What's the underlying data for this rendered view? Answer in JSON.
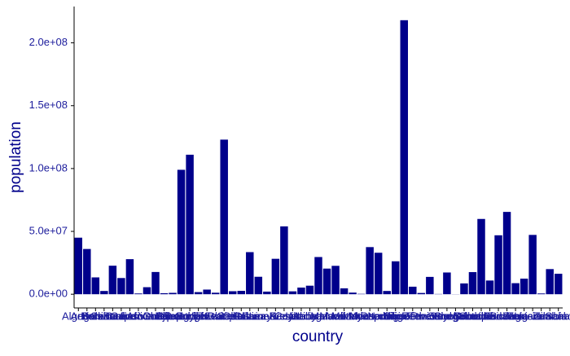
{
  "chart_data": {
    "type": "bar",
    "x_label": "country",
    "y_label": "population",
    "categories": [
      "Algeria",
      "Angola",
      "Benin",
      "Botswana",
      "Burkina Faso",
      "Burundi",
      "Cameroon",
      "Cape Verde",
      "Central African Republic",
      "Chad",
      "Comoros",
      "Djibouti",
      "DR Congo",
      "Egypt",
      "Equatorial Guinea",
      "Eritrea",
      "Eswatini",
      "Ethiopia",
      "Gabon",
      "Gambia",
      "Ghana",
      "Guinea",
      "Guinea-Bissau",
      "Ivory Coast",
      "Kenya",
      "Lesotho",
      "Liberia",
      "Libya",
      "Madagascar",
      "Malawi",
      "Mali",
      "Mauritania",
      "Mauritius",
      "Mayotte",
      "Morocco",
      "Mozambique",
      "Namibia",
      "Niger",
      "Nigeria",
      "Republic of the Congo",
      "Reunion",
      "Rwanda",
      "Sao Tome and Principe",
      "Senegal",
      "Seychelles",
      "Sierra Leone",
      "Somalia",
      "South Africa",
      "South Sudan",
      "Sudan",
      "Tanzania",
      "Togo",
      "Tunisia",
      "Uganda",
      "Western Sahara",
      "Zambia",
      "Zimbabwe"
    ],
    "values": [
      45000000,
      36000000,
      13400000,
      2600000,
      22700000,
      12900000,
      27900000,
      600000,
      5600000,
      17700000,
      800000,
      1100000,
      99000000,
      111000000,
      1700000,
      3700000,
      1200000,
      123000000,
      2400000,
      2700000,
      33500000,
      13900000,
      2100000,
      28200000,
      54000000,
      2300000,
      5300000,
      6800000,
      29600000,
      20400000,
      22600000,
      4700000,
      1300000,
      300000,
      37500000,
      33000000,
      2600000,
      26200000,
      218000000,
      6000000,
      1000000,
      13800000,
      200000,
      17300000,
      100000,
      8600000,
      17600000,
      59900000,
      10900000,
      46900000,
      65500000,
      8800000,
      12400000,
      47200000,
      600000,
      20000000,
      16300000
    ],
    "color": "#00008b",
    "ylim": [
      -10900000,
      228900000
    ],
    "yticks": [
      {
        "value": 0,
        "label": "0.0e+00"
      },
      {
        "value": 50000000,
        "label": "5.0e+07"
      },
      {
        "value": 100000000,
        "label": "1.0e+08"
      },
      {
        "value": 150000000,
        "label": "1.5e+08"
      },
      {
        "value": 200000000,
        "label": "2.0e+08"
      }
    ],
    "grid": false
  }
}
